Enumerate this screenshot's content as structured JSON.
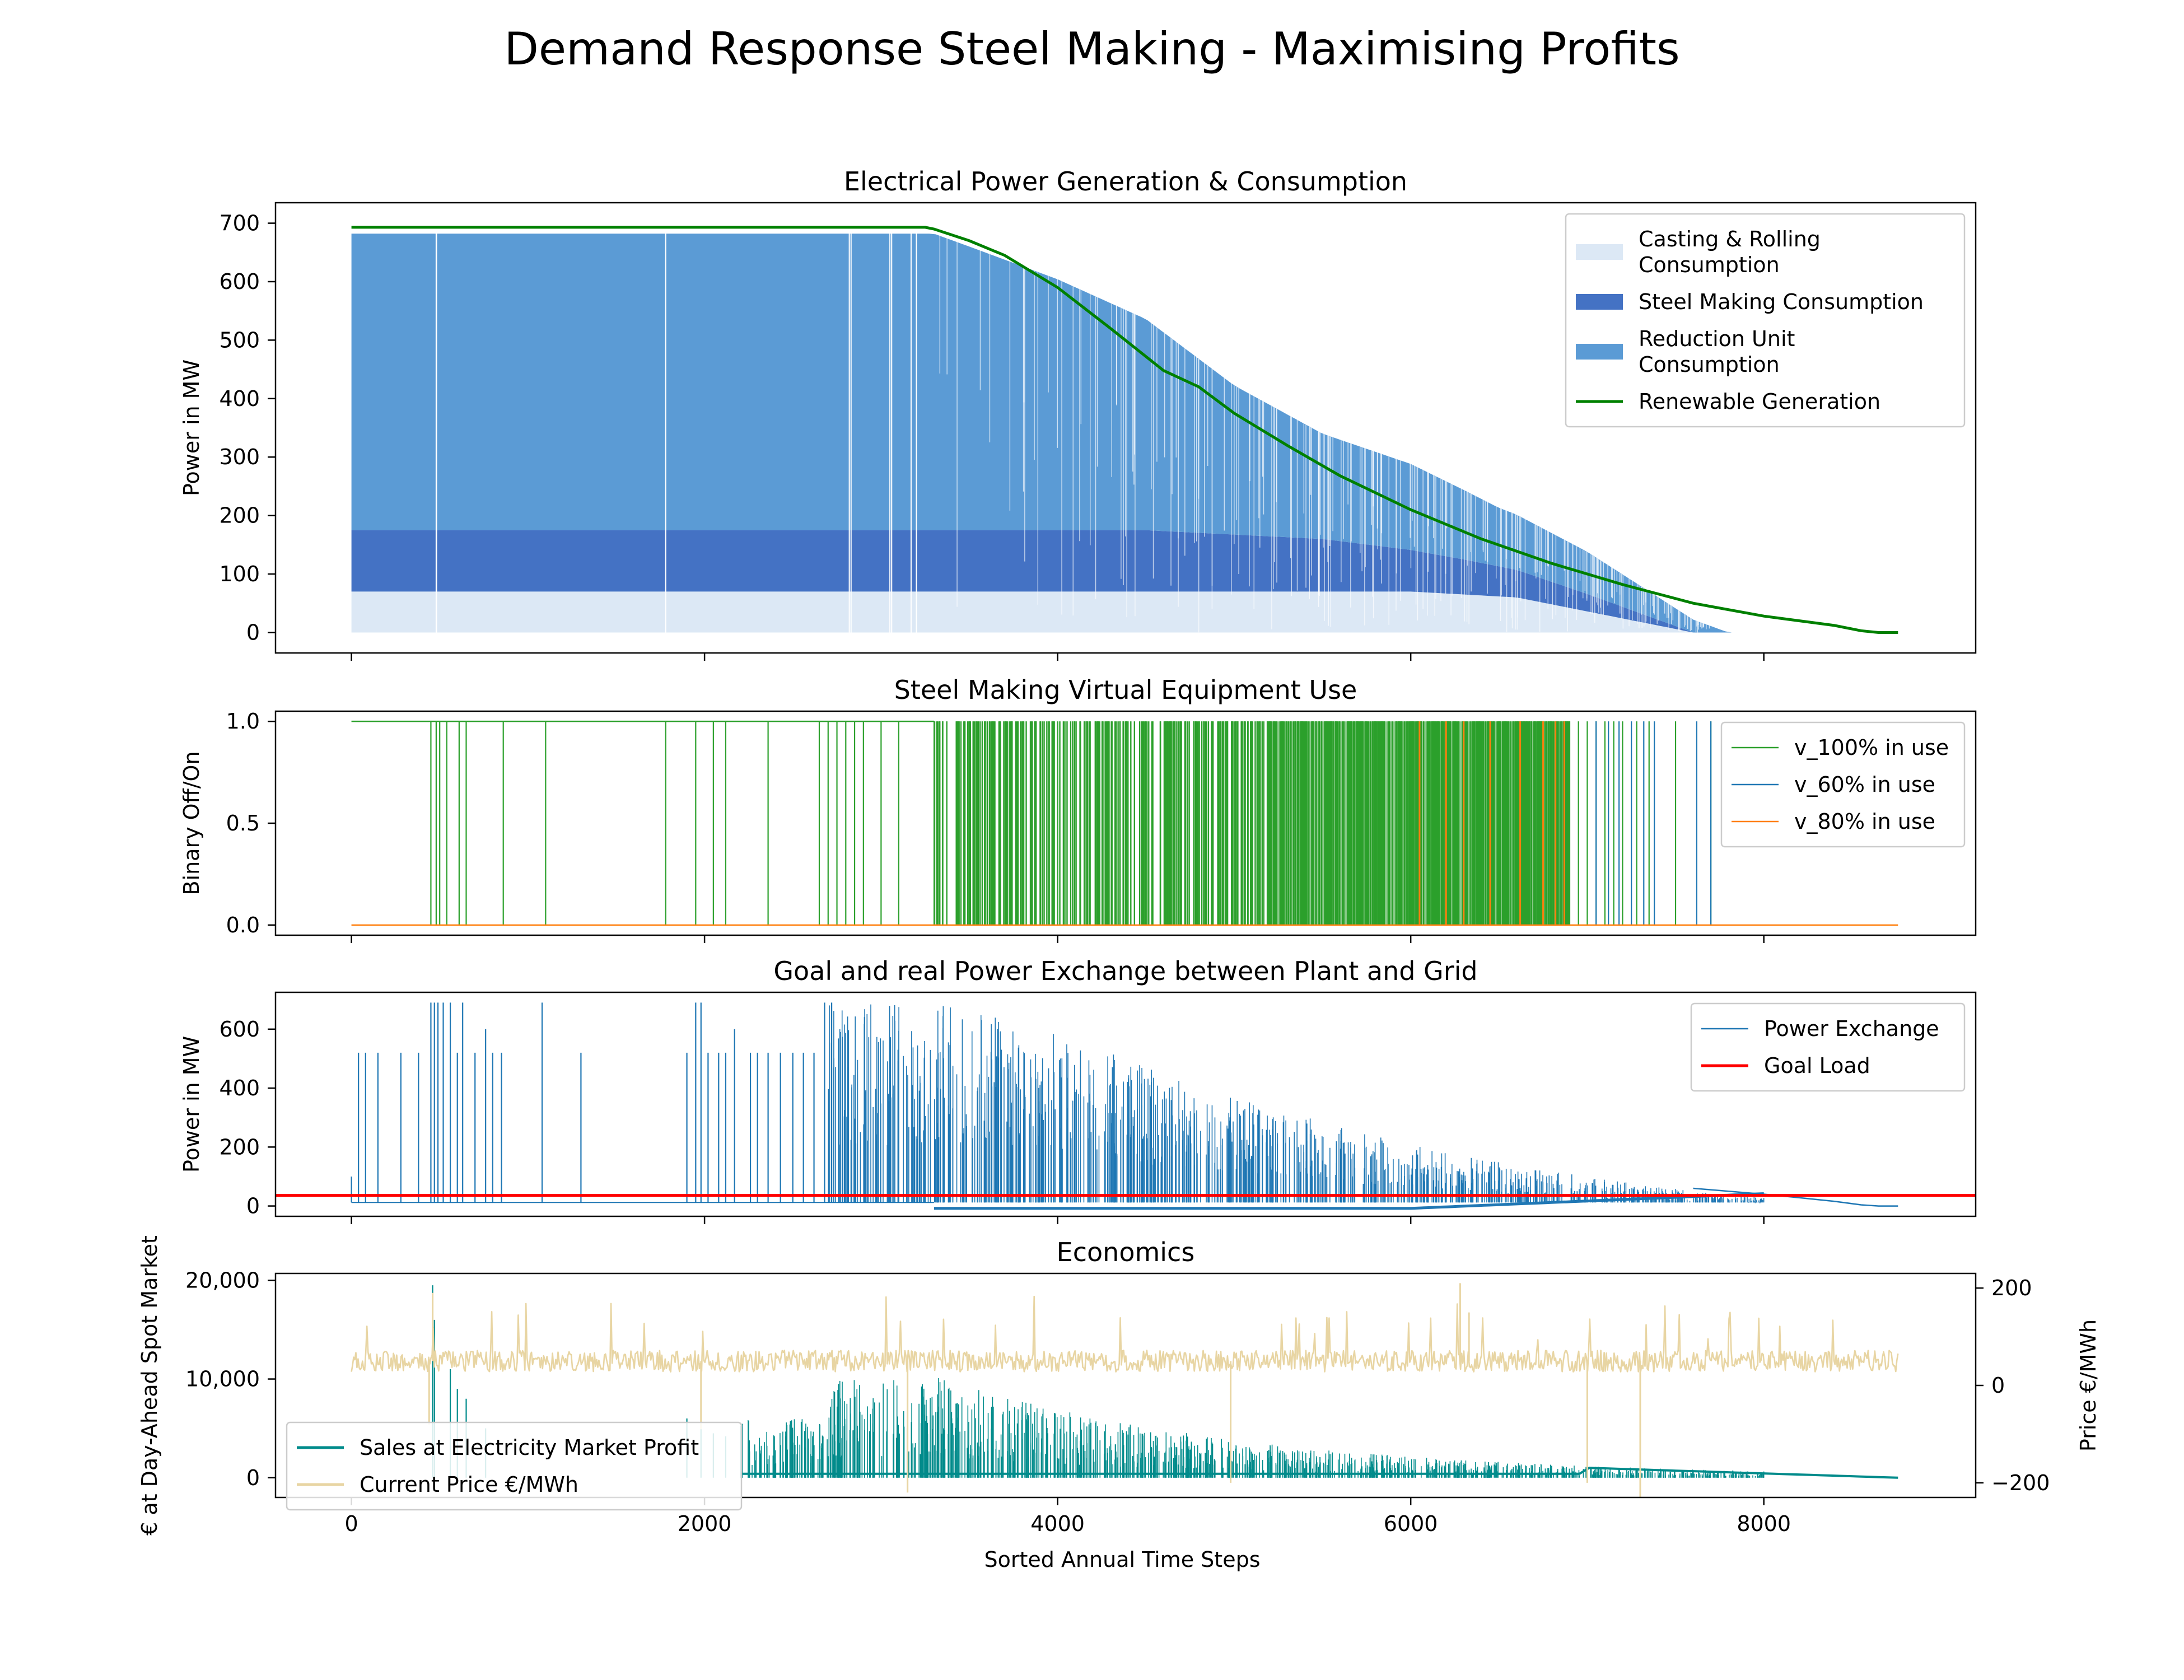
{
  "figure": {
    "title": "Demand Response Steel Making - Maximising Profits",
    "xlabel": "Sorted Annual Time Steps"
  },
  "colors": {
    "casting": "#dce8f5",
    "steel": "#4472c4",
    "reduction": "#5b9bd5",
    "renewable": "#008000",
    "v100": "#2ca02c",
    "v60": "#1f77b4",
    "v80": "#ff7f0e",
    "exchange": "#1f77b4",
    "goal": "#ff0000",
    "sales": "#008b8b",
    "price": "#e8d5a3"
  },
  "chart_data": [
    {
      "type": "area",
      "title": "Electrical Power Generation & Consumption",
      "xlabel": "",
      "ylabel": "Power in MW",
      "xlim": [
        -430,
        9200
      ],
      "ylim": [
        -35,
        735
      ],
      "xticks": [
        0,
        2000,
        4000,
        6000,
        8000
      ],
      "yticks": [
        0,
        100,
        200,
        300,
        400,
        500,
        600,
        700
      ],
      "ytick_labels": [
        "0",
        "100",
        "200",
        "300",
        "400",
        "500",
        "600",
        "700"
      ],
      "legend_position": "upper right",
      "series": [
        {
          "name": "Casting & Rolling Consumption",
          "kind": "stacked-area",
          "x": [
            0,
            6000,
            6600,
            7600,
            8760
          ],
          "values": [
            70,
            70,
            60,
            0,
            0
          ]
        },
        {
          "name": "Steel Making Consumption",
          "kind": "stacked-area",
          "x": [
            0,
            3500,
            4500,
            5500,
            6300,
            7000,
            7600,
            8760
          ],
          "values": [
            105,
            105,
            105,
            90,
            60,
            30,
            0,
            0
          ]
        },
        {
          "name": "Reduction Unit Consumption",
          "kind": "stacked-area",
          "x": [
            0,
            3300,
            3500,
            4000,
            4500,
            5000,
            5500,
            6000,
            6500,
            7000,
            7600,
            7800,
            8760
          ],
          "values": [
            507,
            507,
            485,
            429,
            361,
            255,
            180,
            147,
            100,
            72,
            22,
            0,
            0
          ]
        },
        {
          "name": "Renewable Generation",
          "kind": "line",
          "x": [
            0,
            3250,
            3300,
            3500,
            3700,
            4000,
            4300,
            4600,
            4800,
            5000,
            5300,
            5600,
            6000,
            6400,
            6800,
            7200,
            7600,
            8000,
            8400,
            8550,
            8650,
            8760
          ],
          "values": [
            693,
            693,
            690,
            670,
            645,
            590,
            520,
            448,
            420,
            375,
            320,
            268,
            210,
            160,
            118,
            82,
            50,
            28,
            12,
            3,
            0,
            0
          ]
        }
      ]
    },
    {
      "type": "line",
      "title": "Steel Making Virtual Equipment Use",
      "xlabel": "",
      "ylabel": "Binary Off/On",
      "xlim": [
        -430,
        9200
      ],
      "ylim": [
        -0.05,
        1.05
      ],
      "xticks": [
        0,
        2000,
        4000,
        6000,
        8000
      ],
      "yticks": [
        0,
        0.5,
        1
      ],
      "ytick_labels": [
        "0.0",
        "0.5",
        "1.0"
      ],
      "legend_position": "upper right",
      "series": [
        {
          "name": "v_100% in use",
          "on_from": 0,
          "off_dense_from": 3300,
          "off_dense_to": 6900,
          "last_on": 7700,
          "sparse_off": [
            450,
            480,
            500,
            540,
            610,
            650,
            860,
            1100,
            1780,
            1950,
            2050,
            2120,
            2360,
            2650,
            2700,
            2750,
            2800,
            2850,
            2900,
            3000,
            3100
          ]
        },
        {
          "name": "v_60% in use",
          "segments": [
            [
              7620,
              7700
            ],
            [
              7770,
              8760
            ]
          ]
        },
        {
          "name": "v_80% in use",
          "spikes": [
            6050,
            6200,
            6300,
            6450,
            6620,
            6750,
            6820,
            6870
          ]
        }
      ]
    },
    {
      "type": "line",
      "title": "Goal and real Power Exchange between Plant and Grid",
      "xlabel": "",
      "ylabel": "Power in MW",
      "xlim": [
        -430,
        9200
      ],
      "ylim": [
        -35,
        725
      ],
      "xticks": [
        0,
        2000,
        4000,
        6000,
        8000
      ],
      "yticks": [
        0,
        200,
        400,
        600
      ],
      "ytick_labels": [
        "0",
        "200",
        "400",
        "600"
      ],
      "legend_position": "upper right",
      "series": [
        {
          "name": "Power Exchange",
          "baseline": 12,
          "spike_x": [
            0,
            40,
            80,
            150,
            280,
            380,
            450,
            470,
            490,
            520,
            560,
            600,
            630,
            700,
            760,
            800,
            850,
            1080,
            1300,
            1900,
            1950,
            1980,
            2020,
            2080,
            2120,
            2170,
            2260,
            2300,
            2360,
            2430,
            2500,
            2560,
            2620,
            2680,
            2720
          ],
          "spike_y": [
            100,
            520,
            520,
            520,
            520,
            520,
            690,
            690,
            690,
            690,
            690,
            520,
            690,
            520,
            600,
            520,
            520,
            690,
            520,
            520,
            690,
            690,
            520,
            520,
            520,
            600,
            520,
            520,
            520,
            520,
            520,
            520,
            520,
            690,
            690
          ]
        },
        {
          "name": "Goal Load",
          "values": [
            36,
            36
          ]
        }
      ]
    },
    {
      "type": "line",
      "title": "Economics",
      "xlabel": "Sorted Annual Time Steps",
      "ylabel": "€ at Day-Ahead Spot Market",
      "y2label": "Price €/MWh",
      "xlim": [
        -430,
        9200
      ],
      "ylim": [
        -2000,
        20700
      ],
      "y2lim": [
        -230,
        230
      ],
      "xticks": [
        0,
        2000,
        4000,
        6000,
        8000
      ],
      "yticks": [
        0,
        10000,
        20000
      ],
      "ytick_labels": [
        "0",
        "10,000",
        "20,000"
      ],
      "y2ticks": [
        -200,
        0,
        200
      ],
      "y2tick_labels": [
        "−200",
        "0",
        "200"
      ],
      "legend_position": "lower left",
      "series": [
        {
          "name": "Sales at Electricity Market Profit",
          "axis": "left"
        },
        {
          "name": "Current Price €/MWh",
          "axis": "right",
          "mean": 50,
          "noise": 22,
          "dips": [
            [
              440,
              -80
            ],
            [
              1980,
              -90
            ],
            [
              3150,
              -220
            ],
            [
              4980,
              -200
            ],
            [
              7000,
              -200
            ],
            [
              7300,
              -230
            ]
          ],
          "peaks": [
            [
              460,
              190
            ],
            [
              6280,
              210
            ],
            [
              6330,
              150
            ]
          ]
        }
      ]
    }
  ]
}
